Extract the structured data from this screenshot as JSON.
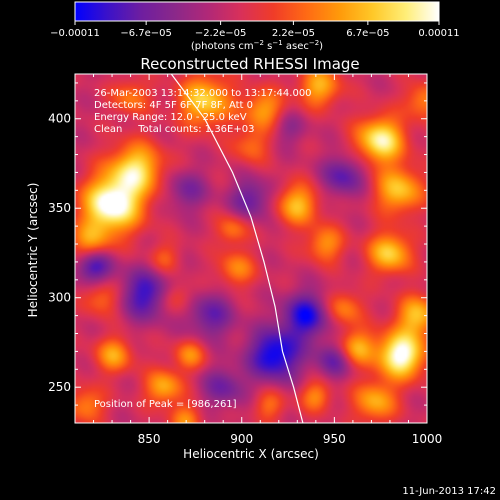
{
  "colorbar": {
    "colormap": "blue-purple-red-orange-yellow-white",
    "colors": [
      "#0000ff",
      "#3c12c8",
      "#6e1ea0",
      "#8a288a",
      "#b02878",
      "#d8305a",
      "#f03c28",
      "#ff6a14",
      "#ff9a0a",
      "#ffc828",
      "#ffee78",
      "#ffffff"
    ],
    "ticks": [
      {
        "label": "−0.00011",
        "value": -0.00011
      },
      {
        "label": "−6.7e−05",
        "value": -6.7e-05
      },
      {
        "label": "−2.2e−05",
        "value": -2.2e-05
      },
      {
        "label": "2.2e−05",
        "value": 2.2e-05
      },
      {
        "label": "6.7e−05",
        "value": 6.7e-05
      },
      {
        "label": "0.00011",
        "value": 0.00011
      }
    ],
    "range": [
      -0.00011,
      0.00011
    ],
    "units_prefix": "(photons cm",
    "units_exp1": "−2",
    "units_mid": " s",
    "units_exp2": "−1",
    "units_mid2": " asec",
    "units_exp3": "−2",
    "units_suffix": ")"
  },
  "chart_data": {
    "type": "heatmap",
    "title": "Reconstructed RHESSI Image",
    "xlabel": "Heliocentric X (arcsec)",
    "ylabel": "Heliocentric Y (arcsec)",
    "xlim": [
      810,
      1000
    ],
    "ylim": [
      230,
      425
    ],
    "xticks": [
      850,
      900,
      950,
      1000
    ],
    "yticks": [
      250,
      300,
      350,
      400
    ],
    "grid": false,
    "annotations": [
      "26-Mar-2003 13:14:32.000 to 13:17:44.000",
      "Detectors: 4F 5F 6F 7F 8F, Att 0",
      "Energy Range: 12.0 - 25.0 keV",
      "Clean     Total counts: 1.36E+03"
    ],
    "peak_label": "Position of Peak = [986,261]",
    "peak": [
      986,
      261
    ],
    "limb": [
      [
        862,
        425
      ],
      [
        880,
        400
      ],
      [
        895,
        370
      ],
      [
        905,
        345
      ],
      [
        912,
        320
      ],
      [
        918,
        295
      ],
      [
        922,
        270
      ],
      [
        928,
        250
      ],
      [
        933,
        230
      ]
    ],
    "sources": [
      {
        "x": 830,
        "y": 352,
        "amp": 2.4,
        "sigma": 11
      },
      {
        "x": 843,
        "y": 372,
        "amp": 1.7,
        "sigma": 10
      },
      {
        "x": 818,
        "y": 330,
        "amp": 1.1,
        "sigma": 8
      },
      {
        "x": 825,
        "y": 300,
        "amp": 0.9,
        "sigma": 7
      },
      {
        "x": 831,
        "y": 268,
        "amp": 1.2,
        "sigma": 7
      },
      {
        "x": 816,
        "y": 240,
        "amp": 1.0,
        "sigma": 7
      },
      {
        "x": 858,
        "y": 250,
        "amp": 1.3,
        "sigma": 7
      },
      {
        "x": 872,
        "y": 268,
        "amp": 1.0,
        "sigma": 6
      },
      {
        "x": 870,
        "y": 232,
        "amp": 1.0,
        "sigma": 6
      },
      {
        "x": 897,
        "y": 316,
        "amp": 1.0,
        "sigma": 7
      },
      {
        "x": 895,
        "y": 338,
        "amp": 0.9,
        "sigma": 6
      },
      {
        "x": 880,
        "y": 410,
        "amp": 1.6,
        "sigma": 10
      },
      {
        "x": 912,
        "y": 405,
        "amp": 1.2,
        "sigma": 8
      },
      {
        "x": 905,
        "y": 385,
        "amp": 0.8,
        "sigma": 7
      },
      {
        "x": 942,
        "y": 418,
        "amp": 1.3,
        "sigma": 8
      },
      {
        "x": 930,
        "y": 352,
        "amp": 1.4,
        "sigma": 8
      },
      {
        "x": 945,
        "y": 330,
        "amp": 1.1,
        "sigma": 7
      },
      {
        "x": 955,
        "y": 294,
        "amp": 1.0,
        "sigma": 7
      },
      {
        "x": 962,
        "y": 272,
        "amp": 1.3,
        "sigma": 7
      },
      {
        "x": 975,
        "y": 388,
        "amp": 2.0,
        "sigma": 9
      },
      {
        "x": 985,
        "y": 360,
        "amp": 1.5,
        "sigma": 9
      },
      {
        "x": 980,
        "y": 325,
        "amp": 1.6,
        "sigma": 8
      },
      {
        "x": 986,
        "y": 268,
        "amp": 2.3,
        "sigma": 9
      },
      {
        "x": 972,
        "y": 242,
        "amp": 1.3,
        "sigma": 8
      },
      {
        "x": 995,
        "y": 290,
        "amp": 1.4,
        "sigma": 8
      },
      {
        "x": 998,
        "y": 410,
        "amp": 1.0,
        "sigma": 7
      },
      {
        "x": 940,
        "y": 245,
        "amp": 1.0,
        "sigma": 6
      },
      {
        "x": 915,
        "y": 240,
        "amp": 0.8,
        "sigma": 6
      },
      {
        "x": 865,
        "y": 300,
        "amp": 0.8,
        "sigma": 6
      },
      {
        "x": 858,
        "y": 322,
        "amp": 0.7,
        "sigma": 6
      },
      {
        "x": 840,
        "y": 412,
        "amp": 0.9,
        "sigma": 7
      },
      {
        "x": 918,
        "y": 268,
        "amp": -1.7,
        "sigma": 10
      },
      {
        "x": 935,
        "y": 290,
        "amp": -1.5,
        "sigma": 9
      },
      {
        "x": 848,
        "y": 302,
        "amp": -1.3,
        "sigma": 10
      },
      {
        "x": 820,
        "y": 318,
        "amp": -1.5,
        "sigma": 7
      },
      {
        "x": 883,
        "y": 290,
        "amp": -1.0,
        "sigma": 9
      },
      {
        "x": 950,
        "y": 265,
        "amp": -1.0,
        "sigma": 7
      },
      {
        "x": 905,
        "y": 355,
        "amp": -1.0,
        "sigma": 8
      },
      {
        "x": 955,
        "y": 368,
        "amp": -1.1,
        "sigma": 8
      },
      {
        "x": 870,
        "y": 360,
        "amp": -0.8,
        "sigma": 8
      },
      {
        "x": 890,
        "y": 250,
        "amp": -0.9,
        "sigma": 8
      },
      {
        "x": 925,
        "y": 395,
        "amp": -0.6,
        "sigma": 7
      }
    ]
  },
  "footer": {
    "date": "11-Jun-2013 17:42"
  }
}
